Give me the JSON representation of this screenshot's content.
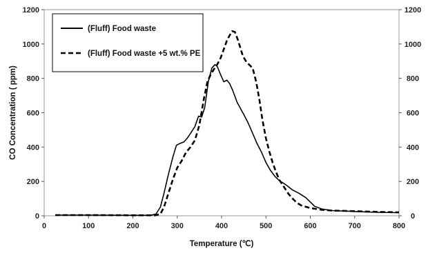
{
  "chart_data": {
    "type": "line",
    "xlabel": "Temperature (℃)",
    "ylabel": "CO Concentration ( ppm)",
    "xlim": [
      0,
      800
    ],
    "ylim": [
      0,
      1200
    ],
    "y2lim": [
      0,
      1200
    ],
    "x_ticks": [
      0,
      100,
      200,
      300,
      400,
      500,
      600,
      700,
      800
    ],
    "y_ticks": [
      0,
      200,
      400,
      600,
      800,
      1000,
      1200
    ],
    "grid": false,
    "legend_position": "top-left",
    "series": [
      {
        "name": "(Fluff) Food waste",
        "style": "solid",
        "color": "#000000",
        "points": [
          [
            25,
            4
          ],
          [
            100,
            4
          ],
          [
            200,
            3
          ],
          [
            240,
            3
          ],
          [
            252,
            10
          ],
          [
            262,
            50
          ],
          [
            270,
            130
          ],
          [
            280,
            240
          ],
          [
            290,
            340
          ],
          [
            298,
            410
          ],
          [
            305,
            420
          ],
          [
            315,
            430
          ],
          [
            322,
            450
          ],
          [
            330,
            480
          ],
          [
            340,
            520
          ],
          [
            348,
            580
          ],
          [
            355,
            575
          ],
          [
            362,
            630
          ],
          [
            370,
            780
          ],
          [
            378,
            860
          ],
          [
            385,
            880
          ],
          [
            390,
            870
          ],
          [
            398,
            820
          ],
          [
            405,
            780
          ],
          [
            412,
            790
          ],
          [
            418,
            770
          ],
          [
            425,
            730
          ],
          [
            435,
            660
          ],
          [
            450,
            590
          ],
          [
            460,
            540
          ],
          [
            470,
            480
          ],
          [
            480,
            420
          ],
          [
            490,
            370
          ],
          [
            500,
            310
          ],
          [
            510,
            265
          ],
          [
            520,
            230
          ],
          [
            530,
            205
          ],
          [
            545,
            180
          ],
          [
            560,
            150
          ],
          [
            575,
            130
          ],
          [
            590,
            105
          ],
          [
            600,
            80
          ],
          [
            610,
            55
          ],
          [
            625,
            40
          ],
          [
            650,
            30
          ],
          [
            700,
            25
          ],
          [
            750,
            20
          ],
          [
            800,
            18
          ]
        ]
      },
      {
        "name": "(Fluff) Food waste +5 wt.% PE",
        "style": "dashed",
        "color": "#000000",
        "points": [
          [
            25,
            4
          ],
          [
            100,
            4
          ],
          [
            200,
            3
          ],
          [
            250,
            3
          ],
          [
            262,
            10
          ],
          [
            270,
            50
          ],
          [
            280,
            130
          ],
          [
            290,
            210
          ],
          [
            300,
            280
          ],
          [
            310,
            320
          ],
          [
            320,
            370
          ],
          [
            330,
            400
          ],
          [
            340,
            440
          ],
          [
            350,
            530
          ],
          [
            360,
            680
          ],
          [
            368,
            780
          ],
          [
            375,
            820
          ],
          [
            382,
            850
          ],
          [
            390,
            880
          ],
          [
            398,
            920
          ],
          [
            405,
            970
          ],
          [
            412,
            1020
          ],
          [
            418,
            1050
          ],
          [
            424,
            1075
          ],
          [
            430,
            1070
          ],
          [
            436,
            1030
          ],
          [
            442,
            980
          ],
          [
            448,
            930
          ],
          [
            455,
            900
          ],
          [
            462,
            880
          ],
          [
            470,
            860
          ],
          [
            478,
            780
          ],
          [
            485,
            680
          ],
          [
            492,
            560
          ],
          [
            500,
            450
          ],
          [
            508,
            370
          ],
          [
            515,
            310
          ],
          [
            522,
            260
          ],
          [
            530,
            210
          ],
          [
            540,
            170
          ],
          [
            550,
            130
          ],
          [
            560,
            100
          ],
          [
            570,
            75
          ],
          [
            580,
            60
          ],
          [
            600,
            45
          ],
          [
            625,
            35
          ],
          [
            650,
            30
          ],
          [
            700,
            27
          ],
          [
            750,
            23
          ],
          [
            800,
            20
          ]
        ]
      }
    ]
  }
}
